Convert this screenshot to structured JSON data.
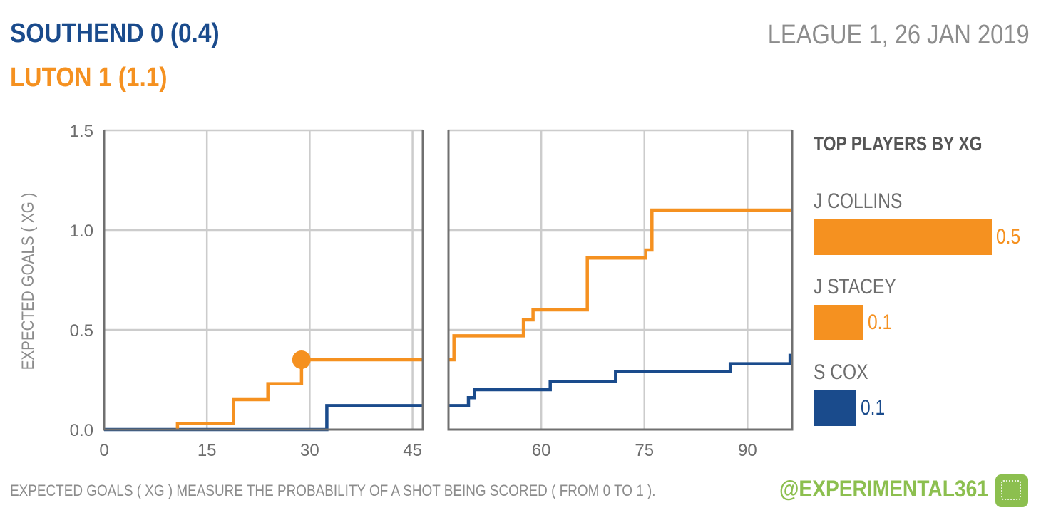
{
  "header": {
    "home": "SOUTHEND 0  (0.4)",
    "away": "LUTON 1  (1.1)",
    "match_info": "LEAGUE 1, 26 JAN 2019"
  },
  "colors": {
    "home": "#1a4b8c",
    "away": "#f59120",
    "grid": "#cccccc",
    "axis_text": "#6d6d6d"
  },
  "footer": {
    "note": "EXPECTED GOALS ( XG ) MEASURE THE PROBABILITY  OF A SHOT BEING SCORED ( FROM 0 TO 1 ).",
    "credit": "@EXPERIMENTAL361",
    "logo_icon": "pitch-icon"
  },
  "chart_data": {
    "type": "line",
    "step": true,
    "ylabel": "EXPECTED GOALS ( XG )",
    "ylim": [
      0,
      1.5
    ],
    "yticks": [
      "0.0",
      "0.5",
      "1.0",
      "1.5"
    ],
    "grid": true,
    "panels": [
      {
        "name": "first-half",
        "xlim": [
          0,
          46.5
        ],
        "xticks": [
          0,
          15,
          30,
          45
        ]
      },
      {
        "name": "second-half",
        "xlim": [
          46.5,
          96.5
        ],
        "xticks": [
          60,
          75,
          90
        ]
      }
    ],
    "series": [
      {
        "name": "SOUTHEND",
        "color": "#1a4b8c",
        "halves": [
          [
            [
              0,
              0
            ],
            [
              32.5,
              0
            ],
            [
              32.5,
              0.12
            ],
            [
              46.5,
              0.12
            ]
          ],
          [
            [
              46.5,
              0.12
            ],
            [
              49.4,
              0.12
            ],
            [
              49.4,
              0.16
            ],
            [
              50.3,
              0.16
            ],
            [
              50.3,
              0.2
            ],
            [
              61.3,
              0.2
            ],
            [
              61.3,
              0.24
            ],
            [
              70.8,
              0.24
            ],
            [
              70.8,
              0.29
            ],
            [
              87.5,
              0.29
            ],
            [
              87.5,
              0.33
            ],
            [
              96.2,
              0.33
            ],
            [
              96.2,
              0.38
            ]
          ]
        ]
      },
      {
        "name": "LUTON",
        "color": "#f59120",
        "halves": [
          [
            [
              10.7,
              0
            ],
            [
              10.7,
              0.03
            ],
            [
              18.9,
              0.03
            ],
            [
              18.9,
              0.15
            ],
            [
              23.9,
              0.15
            ],
            [
              23.9,
              0.23
            ],
            [
              28.8,
              0.23
            ],
            [
              28.8,
              0.35
            ],
            [
              46.5,
              0.35
            ]
          ],
          [
            [
              46.5,
              0.35
            ],
            [
              47.3,
              0.35
            ],
            [
              47.3,
              0.47
            ],
            [
              57.4,
              0.47
            ],
            [
              57.4,
              0.55
            ],
            [
              58.8,
              0.55
            ],
            [
              58.8,
              0.6
            ],
            [
              66.7,
              0.6
            ],
            [
              66.7,
              0.86
            ],
            [
              75.2,
              0.86
            ],
            [
              75.2,
              0.9
            ],
            [
              76.1,
              0.9
            ],
            [
              76.1,
              1.1
            ],
            [
              96.5,
              1.1
            ]
          ]
        ]
      }
    ],
    "annotations": [
      {
        "type": "goal",
        "team": "LUTON",
        "minute": 28.8,
        "xg": 0.35
      }
    ],
    "top_players": {
      "title": "TOP PLAYERS BY XG",
      "max_value": 0.5,
      "players": [
        {
          "name": "J COLLINS",
          "value": "0.5",
          "xg": 0.5,
          "team": "LUTON"
        },
        {
          "name": "J STACEY",
          "value": "0.1",
          "xg": 0.14,
          "team": "LUTON"
        },
        {
          "name": "S COX",
          "value": "0.1",
          "xg": 0.12,
          "team": "SOUTHEND"
        }
      ]
    }
  }
}
